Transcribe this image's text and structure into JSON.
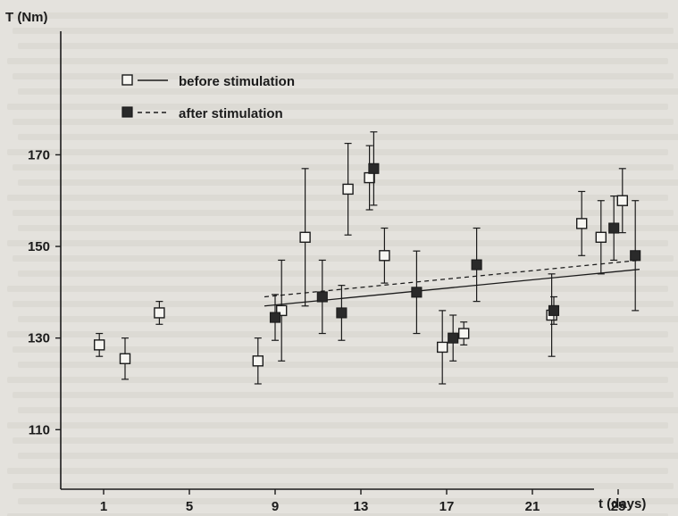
{
  "chart_data": {
    "type": "scatter",
    "ylabel": "T (Nm)",
    "xlabel": "t (days)",
    "x_ticks": [
      1,
      5,
      9,
      13,
      17,
      21,
      25
    ],
    "y_ticks": [
      110,
      130,
      150,
      170
    ],
    "xlim": [
      -1,
      27
    ],
    "ylim": [
      97,
      196
    ],
    "legend_position": "top-left",
    "series": [
      {
        "name": "before stimulation",
        "marker": "open-square",
        "line_style": "solid",
        "points": [
          {
            "x": 0.8,
            "y": 128.5,
            "err": 2.5
          },
          {
            "x": 2.0,
            "y": 125.5,
            "err": 4.5
          },
          {
            "x": 3.6,
            "y": 135.5,
            "err": 2.5
          },
          {
            "x": 8.2,
            "y": 125.0,
            "err": 5.0
          },
          {
            "x": 9.3,
            "y": 136.0,
            "err": 11.0
          },
          {
            "x": 10.4,
            "y": 152.0,
            "err": 15.0
          },
          {
            "x": 12.4,
            "y": 162.5,
            "err": 10.0
          },
          {
            "x": 13.4,
            "y": 165.0,
            "err": 7.0
          },
          {
            "x": 14.1,
            "y": 148.0,
            "err": 6.0
          },
          {
            "x": 16.8,
            "y": 128.0,
            "err": 8.0
          },
          {
            "x": 17.8,
            "y": 131.0,
            "err": 2.5
          },
          {
            "x": 21.9,
            "y": 135.0,
            "err": 9.0
          },
          {
            "x": 23.3,
            "y": 155.0,
            "err": 7.0
          },
          {
            "x": 24.2,
            "y": 152.0,
            "err": 8.0
          },
          {
            "x": 25.2,
            "y": 160.0,
            "err": 7.0
          }
        ],
        "trend": {
          "x": [
            8.5,
            26.0
          ],
          "y": [
            137.0,
            145.0
          ]
        }
      },
      {
        "name": "after stimulation",
        "marker": "filled-square",
        "line_style": "dashed",
        "points": [
          {
            "x": 9.0,
            "y": 134.5,
            "err": 5.0
          },
          {
            "x": 11.2,
            "y": 139.0,
            "err": 8.0
          },
          {
            "x": 12.1,
            "y": 135.5,
            "err": 6.0
          },
          {
            "x": 13.6,
            "y": 167.0,
            "err": 8.0
          },
          {
            "x": 15.6,
            "y": 140.0,
            "err": 9.0
          },
          {
            "x": 17.3,
            "y": 130.0,
            "err": 5.0
          },
          {
            "x": 18.4,
            "y": 146.0,
            "err": 8.0
          },
          {
            "x": 22.0,
            "y": 136.0,
            "err": 3.0
          },
          {
            "x": 24.8,
            "y": 154.0,
            "err": 7.0
          },
          {
            "x": 25.8,
            "y": 148.0,
            "err": 12.0
          }
        ],
        "trend": {
          "x": [
            8.5,
            26.0
          ],
          "y": [
            139.0,
            147.0
          ]
        }
      }
    ]
  }
}
